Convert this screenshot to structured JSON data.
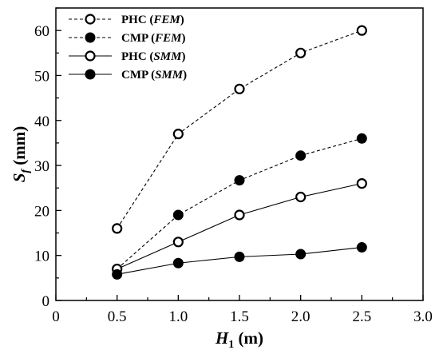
{
  "chart_data": {
    "type": "line",
    "title": "",
    "xlabel": {
      "main": "H",
      "sub": "1",
      "unit": " (m)"
    },
    "ylabel": {
      "main": "S",
      "sub": "f",
      "unit": " (mm)"
    },
    "xlim": [
      0,
      3.0
    ],
    "ylim": [
      0,
      65
    ],
    "xticks": [
      0,
      0.5,
      1.0,
      1.5,
      2.0,
      2.5,
      3.0
    ],
    "xtick_labels": [
      "0",
      "0.5",
      "1.0",
      "1.5",
      "2.0",
      "2.5",
      "3.0"
    ],
    "yticks": [
      0,
      10,
      20,
      30,
      40,
      50,
      60
    ],
    "ytick_labels": [
      "0",
      "10",
      "20",
      "30",
      "40",
      "50",
      "60"
    ],
    "grid": false,
    "legend_position": "top-left",
    "x": [
      0.5,
      1.0,
      1.5,
      2.0,
      2.5
    ],
    "series": [
      {
        "name": "PHC (FEM)",
        "name_main": "PHC (",
        "name_italic": "FEM",
        "name_end": ")",
        "marker": "open-circle",
        "line": "dashed",
        "values": [
          16,
          37,
          47,
          55,
          60
        ]
      },
      {
        "name": "CMP (FEM)",
        "name_main": "CMP (",
        "name_italic": "FEM",
        "name_end": ")",
        "marker": "filled-circle",
        "line": "dashed",
        "values": [
          7,
          19,
          26.7,
          32.2,
          36
        ]
      },
      {
        "name": "PHC (SMM)",
        "name_main": "PHC (",
        "name_italic": "SMM",
        "name_end": ")",
        "marker": "open-circle",
        "line": "solid",
        "values": [
          7,
          13,
          19,
          23,
          26
        ]
      },
      {
        "name": "CMP (SMM)",
        "name_main": "CMP (",
        "name_italic": "SMM",
        "name_end": ")",
        "marker": "filled-circle",
        "line": "solid",
        "values": [
          5.8,
          8.3,
          9.7,
          10.3,
          11.8
        ]
      }
    ]
  }
}
